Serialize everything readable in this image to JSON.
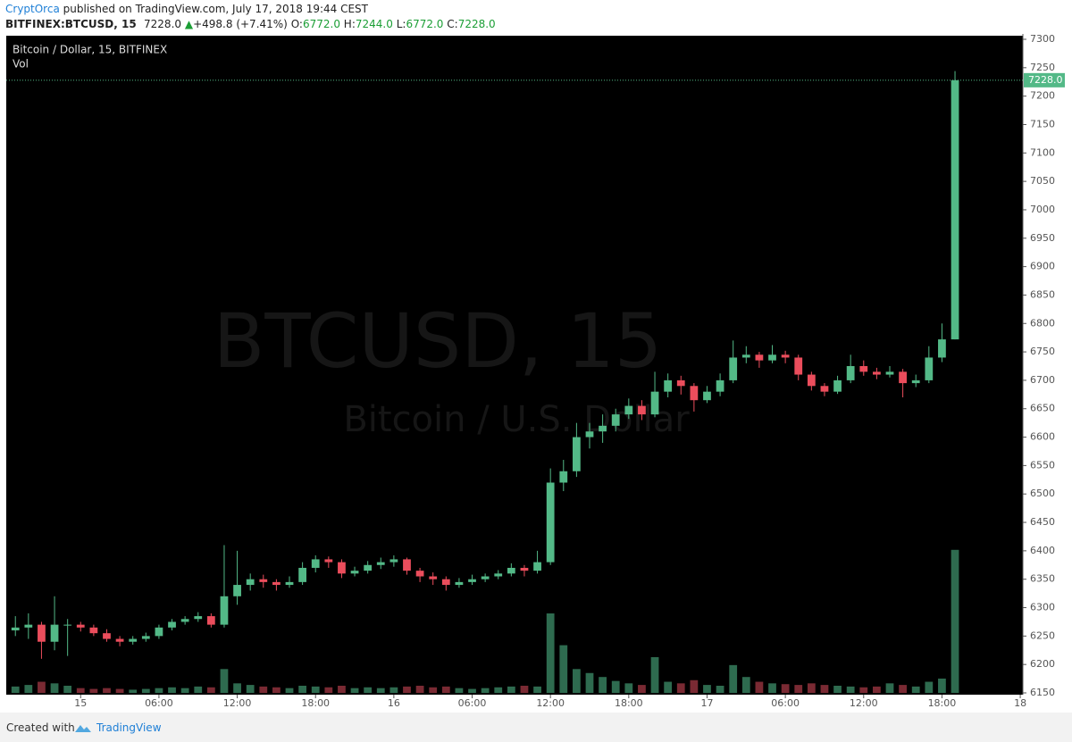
{
  "header": {
    "author": "CryptOrca",
    "published": "published on TradingView.com, July 17, 2018 19:44 CEST",
    "symbol": "BITFINEX:BTCUSD, 15",
    "last": "7228.0",
    "change": "+498.8 (+7.41%)",
    "o_label": "O:",
    "o": "6772.0",
    "h_label": "H:",
    "h": "7244.0",
    "l_label": "L:",
    "l": "6772.0",
    "c_label": "C:",
    "c": "7228.0"
  },
  "footer": {
    "created": "Created with",
    "brand": "TradingView"
  },
  "chart_data": {
    "type": "candlestick",
    "legend": "Bitcoin / Dollar, 15, BITFINEX",
    "volume_label": "Vol",
    "watermark": "BTCUSD, 15",
    "watermark_sub": "Bitcoin / U.S. Dollar",
    "up_color": "#53b987",
    "down_color": "#eb4d5c",
    "volume_up_color": "#2e6b4f",
    "volume_down_color": "#7a2a33",
    "last_price": {
      "value": 7228,
      "label": "7228.0"
    },
    "x": [
      -5,
      -4,
      -3,
      -2,
      -1,
      0,
      1,
      2,
      3,
      4,
      5,
      6,
      7,
      8,
      9,
      10,
      11,
      12,
      13,
      14,
      15,
      16,
      17,
      18,
      19,
      20,
      21,
      22,
      23,
      24,
      25,
      26,
      27,
      28,
      29,
      30,
      31,
      32,
      33,
      34,
      35,
      36,
      37,
      38,
      39,
      40,
      41,
      42,
      43,
      44,
      45,
      46,
      47,
      48,
      49,
      50,
      51,
      52,
      53,
      54,
      55,
      56,
      57,
      58,
      59,
      60,
      61,
      62,
      63,
      64,
      65,
      66,
      67
    ],
    "candles": [
      [
        6260,
        6285,
        6250,
        6265
      ],
      [
        6265,
        6290,
        6245,
        6270
      ],
      [
        6270,
        6275,
        6210,
        6240
      ],
      [
        6240,
        6320,
        6225,
        6270
      ],
      [
        6270,
        6280,
        6215,
        6270
      ],
      [
        6270,
        6275,
        6258,
        6265
      ],
      [
        6265,
        6270,
        6250,
        6255
      ],
      [
        6255,
        6262,
        6240,
        6245
      ],
      [
        6245,
        6250,
        6232,
        6240
      ],
      [
        6240,
        6250,
        6235,
        6245
      ],
      [
        6245,
        6256,
        6240,
        6250
      ],
      [
        6250,
        6270,
        6245,
        6265
      ],
      [
        6265,
        6280,
        6260,
        6275
      ],
      [
        6275,
        6285,
        6270,
        6280
      ],
      [
        6280,
        6292,
        6275,
        6285
      ],
      [
        6285,
        6290,
        6265,
        6270
      ],
      [
        6270,
        6410,
        6265,
        6320
      ],
      [
        6320,
        6400,
        6305,
        6340
      ],
      [
        6340,
        6360,
        6330,
        6350
      ],
      [
        6350,
        6358,
        6335,
        6345
      ],
      [
        6345,
        6350,
        6330,
        6340
      ],
      [
        6340,
        6355,
        6335,
        6345
      ],
      [
        6345,
        6380,
        6340,
        6370
      ],
      [
        6370,
        6392,
        6362,
        6385
      ],
      [
        6385,
        6390,
        6370,
        6380
      ],
      [
        6380,
        6385,
        6352,
        6360
      ],
      [
        6360,
        6372,
        6355,
        6365
      ],
      [
        6365,
        6382,
        6360,
        6375
      ],
      [
        6375,
        6388,
        6368,
        6380
      ],
      [
        6380,
        6392,
        6372,
        6385
      ],
      [
        6385,
        6388,
        6358,
        6365
      ],
      [
        6365,
        6370,
        6345,
        6355
      ],
      [
        6355,
        6362,
        6340,
        6350
      ],
      [
        6350,
        6355,
        6330,
        6340
      ],
      [
        6340,
        6352,
        6335,
        6345
      ],
      [
        6345,
        6358,
        6340,
        6350
      ],
      [
        6350,
        6360,
        6345,
        6355
      ],
      [
        6355,
        6366,
        6350,
        6360
      ],
      [
        6360,
        6378,
        6355,
        6370
      ],
      [
        6370,
        6375,
        6355,
        6365
      ],
      [
        6365,
        6400,
        6360,
        6380
      ],
      [
        6380,
        6545,
        6375,
        6520
      ],
      [
        6520,
        6560,
        6505,
        6540
      ],
      [
        6540,
        6625,
        6530,
        6600
      ],
      [
        6600,
        6625,
        6580,
        6610
      ],
      [
        6610,
        6640,
        6590,
        6620
      ],
      [
        6620,
        6650,
        6610,
        6640
      ],
      [
        6640,
        6668,
        6632,
        6655
      ],
      [
        6655,
        6665,
        6630,
        6640
      ],
      [
        6640,
        6715,
        6635,
        6680
      ],
      [
        6680,
        6712,
        6670,
        6700
      ],
      [
        6700,
        6708,
        6675,
        6690
      ],
      [
        6690,
        6695,
        6645,
        6665
      ],
      [
        6665,
        6690,
        6660,
        6680
      ],
      [
        6680,
        6712,
        6672,
        6700
      ],
      [
        6700,
        6770,
        6695,
        6740
      ],
      [
        6740,
        6760,
        6730,
        6745
      ],
      [
        6745,
        6750,
        6722,
        6735
      ],
      [
        6735,
        6762,
        6730,
        6745
      ],
      [
        6745,
        6752,
        6730,
        6740
      ],
      [
        6740,
        6745,
        6700,
        6710
      ],
      [
        6710,
        6715,
        6682,
        6690
      ],
      [
        6690,
        6695,
        6672,
        6680
      ],
      [
        6680,
        6708,
        6676,
        6700
      ],
      [
        6700,
        6745,
        6695,
        6725
      ],
      [
        6725,
        6735,
        6708,
        6715
      ],
      [
        6715,
        6722,
        6702,
        6710
      ],
      [
        6710,
        6725,
        6705,
        6715
      ],
      [
        6715,
        6720,
        6670,
        6695
      ],
      [
        6695,
        6710,
        6688,
        6700
      ],
      [
        6700,
        6760,
        6695,
        6740
      ],
      [
        6740,
        6800,
        6732,
        6772
      ],
      [
        6772,
        7244,
        6772,
        7228
      ]
    ],
    "volume": [
      8,
      10,
      14,
      12,
      9,
      6,
      5,
      6,
      5,
      4,
      5,
      6,
      7,
      6,
      8,
      7,
      30,
      12,
      10,
      8,
      7,
      6,
      9,
      8,
      7,
      9,
      6,
      7,
      6,
      7,
      8,
      9,
      7,
      8,
      6,
      5,
      6,
      7,
      8,
      9,
      8,
      100,
      60,
      30,
      25,
      20,
      15,
      12,
      10,
      45,
      14,
      12,
      16,
      10,
      9,
      35,
      20,
      14,
      12,
      11,
      10,
      12,
      10,
      9,
      8,
      7,
      8,
      12,
      10,
      8,
      14,
      18,
      180
    ],
    "vlim": [
      0,
      200
    ],
    "xlim": [
      -5.7,
      72.2
    ],
    "xticks": [
      {
        "value": 0,
        "label": "15"
      },
      {
        "value": 6,
        "label": "06:00"
      },
      {
        "value": 12,
        "label": "12:00"
      },
      {
        "value": 18,
        "label": "18:00"
      },
      {
        "value": 24,
        "label": "16"
      },
      {
        "value": 30,
        "label": "06:00"
      },
      {
        "value": 36,
        "label": "12:00"
      },
      {
        "value": 42,
        "label": "18:00"
      },
      {
        "value": 48,
        "label": "17"
      },
      {
        "value": 54,
        "label": "06:00"
      },
      {
        "value": 60,
        "label": "12:00"
      },
      {
        "value": 66,
        "label": "18:00"
      },
      {
        "value": 72,
        "label": "18"
      }
    ],
    "ylim": [
      6150,
      7300
    ],
    "yticks": [
      6150,
      6200,
      6250,
      6300,
      6350,
      6400,
      6450,
      6500,
      6550,
      6600,
      6650,
      6700,
      6750,
      6800,
      6850,
      6900,
      6950,
      7000,
      7050,
      7100,
      7150,
      7200,
      7250,
      7300
    ]
  }
}
